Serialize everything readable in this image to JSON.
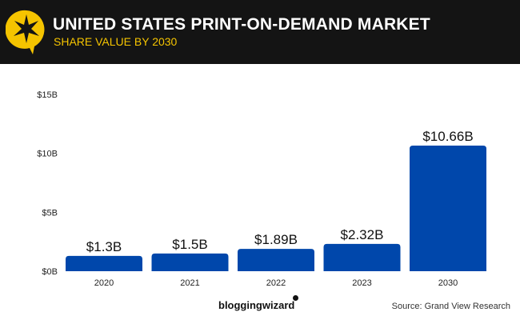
{
  "header": {
    "title": "UNITED STATES PRINT-ON-DEMAND MARKET",
    "subtitle": "SHARE VALUE BY 2030",
    "logo_icon": "star-speech-bubble-icon",
    "accent_color": "#f5c400",
    "background_color": "#141414"
  },
  "footer": {
    "brand": "bloggingwizard",
    "source": "Source: Grand View Research"
  },
  "chart_data": {
    "type": "bar",
    "title": "UNITED STATES PRINT-ON-DEMAND MARKET",
    "subtitle": "SHARE VALUE BY 2030",
    "categories": [
      "2020",
      "2021",
      "2022",
      "2023",
      "2030"
    ],
    "values": [
      1.3,
      1.5,
      1.89,
      2.32,
      10.66
    ],
    "data_labels": [
      "$1.3B",
      "$1.5B",
      "$1.89B",
      "$2.32B",
      "$10.66B"
    ],
    "unit": "billion USD",
    "ylim": [
      0,
      15
    ],
    "yticks": [
      0,
      5,
      10,
      15
    ],
    "ytick_labels": [
      "$0B",
      "$5B",
      "$10B",
      "$15B"
    ],
    "grid": false,
    "bar_color": "#0047ab"
  }
}
